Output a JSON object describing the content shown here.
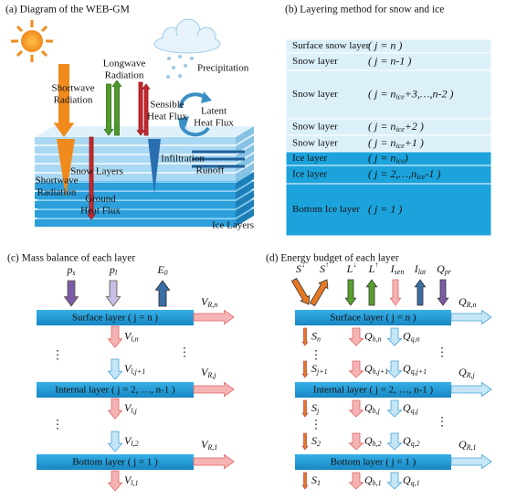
{
  "a": {
    "title": "(a) Diagram of the WEB-GM",
    "shortwave_top": [
      "Shortwave",
      "Radiation"
    ],
    "longwave": [
      "Longwave",
      "Radiation"
    ],
    "sensible": [
      "Sensible",
      "Heat Flux"
    ],
    "latent": [
      "Latent",
      "Heat Flux"
    ],
    "precipitation": "Precipitation",
    "snow_layers": "Snow Layers",
    "infiltration": "Infiltration",
    "runoff": "Runoff",
    "shortwave_bottom": [
      "Shortwave",
      "Radiation"
    ],
    "ground": [
      "Ground",
      "Heat Flux"
    ],
    "ice_layers": "Ice Layers"
  },
  "b": {
    "title": "(b) Layering method for snow and ice",
    "layers": [
      {
        "name": "Surface snow layer",
        "index": [
          "( j = n )"
        ]
      },
      {
        "name": "Snow layer",
        "index": [
          "( j = n-1 )"
        ]
      },
      {
        "name": "Snow layer",
        "index": [
          "( j = n",
          {
            "sub": "ice"
          },
          "+3,…,n-2 )"
        ]
      },
      {
        "name": "Snow layer",
        "index": [
          "( j = n",
          {
            "sub": "ice"
          },
          "+2 )"
        ]
      },
      {
        "name": "Snow layer",
        "index": [
          "( j = n",
          {
            "sub": "ice"
          },
          "+1 )"
        ]
      },
      {
        "name": "Ice layer",
        "index": [
          "( j = n",
          {
            "sub": "ice"
          },
          ")"
        ]
      },
      {
        "name": "Ice layer",
        "index": [
          "( j = 2,…,n",
          {
            "sub": "ice"
          },
          "-1 )"
        ]
      },
      {
        "name": "Bottom Ice layer",
        "index": [
          "( j = 1 )"
        ]
      }
    ]
  },
  "c": {
    "title": "(c) Mass balance of each layer",
    "inputs": [
      [
        "p",
        {
          "sub": "s"
        }
      ],
      [
        "p",
        {
          "sub": "l"
        }
      ],
      [
        "E",
        {
          "sub": "0"
        }
      ]
    ],
    "bars": [
      "Surface layer ( j = n )",
      "Internal layer ( j = 2, …, n-1 )",
      "Bottom layer ( j = 1 )"
    ],
    "runoff": [
      [
        "V",
        {
          "sub": "R,n"
        }
      ],
      [
        "V",
        {
          "sub": "R,j"
        }
      ],
      [
        "V",
        {
          "sub": "R,1"
        }
      ]
    ],
    "flows": [
      [
        "V",
        {
          "sub": "l,n"
        }
      ],
      [
        "V",
        {
          "sub": "l,j+1"
        }
      ],
      [
        "V",
        {
          "sub": "l,j"
        }
      ],
      [
        "V",
        {
          "sub": "l,2"
        }
      ],
      [
        "V",
        {
          "sub": "l,1"
        }
      ]
    ]
  },
  "d": {
    "title": "(d) Energy budget of each layer",
    "inputs": [
      [
        "S",
        {
          "sup": "↓"
        }
      ],
      [
        "S",
        {
          "sup": "↑"
        }
      ],
      [
        "L",
        {
          "sup": "↓"
        }
      ],
      [
        "L",
        {
          "sup": "↑"
        }
      ],
      [
        "I",
        {
          "sub": "sen"
        }
      ],
      [
        "I",
        {
          "sub": "lat"
        }
      ],
      [
        "Q",
        {
          "sub": "pr"
        }
      ]
    ],
    "bars": [
      "Surface layer ( j = n )",
      "Internal layer ( j = 2, …, n-1 )",
      "Bottom layer ( j = 1 )"
    ],
    "runoff": [
      [
        "Q",
        {
          "sub": "R,n"
        }
      ],
      [
        "Q",
        {
          "sub": "R,j"
        }
      ],
      [
        "Q",
        {
          "sub": "R,1"
        }
      ]
    ],
    "fluxes": [
      [
        [
          "S",
          {
            "sub": "n"
          }
        ],
        [
          "Q",
          {
            "sub": "h,n"
          }
        ],
        [
          "Q",
          {
            "sub": "q,n"
          }
        ]
      ],
      [
        [
          "S",
          {
            "sub": "j+1"
          }
        ],
        [
          "Q",
          {
            "sub": "h,j+1"
          }
        ],
        [
          "Q",
          {
            "sub": "q,j+1"
          }
        ]
      ],
      [
        [
          "S",
          {
            "sub": "j"
          }
        ],
        [
          "Q",
          {
            "sub": "h,j"
          }
        ],
        [
          "Q",
          {
            "sub": "q,j"
          }
        ]
      ],
      [
        [
          "S",
          {
            "sub": "2"
          }
        ],
        [
          "Q",
          {
            "sub": "h,2"
          }
        ],
        [
          "Q",
          {
            "sub": "q,2"
          }
        ]
      ],
      [
        [
          "S",
          {
            "sub": "1"
          }
        ],
        [
          "Q",
          {
            "sub": "h,1"
          }
        ],
        [
          "Q",
          {
            "sub": "q,1"
          }
        ]
      ]
    ]
  }
}
